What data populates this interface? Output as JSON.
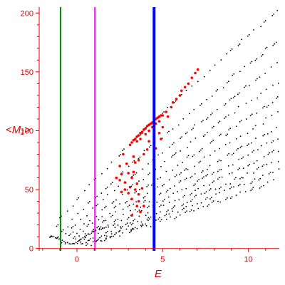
{
  "chart_data": {
    "type": "scatter",
    "title": "",
    "xlabel": "E",
    "ylabel": "<M₁>",
    "xlim": [
      -2.2,
      11.8
    ],
    "ylim": [
      -2,
      205
    ],
    "xticks": [
      0,
      5,
      10
    ],
    "yticks": [
      0,
      50,
      100,
      150,
      200
    ],
    "grid": false,
    "legend": "none",
    "axis_color": "#e00000",
    "vertical_lines": [
      {
        "x": -0.95,
        "color": "#008000"
      },
      {
        "x": 1.05,
        "color": "#ff00ff"
      },
      {
        "x": 4.5,
        "color": "#0000ff"
      }
    ],
    "series": [
      {
        "color": "#000000",
        "marker": "dot",
        "bands": [
          {
            "x0": -1.6,
            "y0": 10,
            "x1": 12.0,
            "y1": 205,
            "curve": 0.85
          },
          {
            "x0": -1.2,
            "y0": 8,
            "x1": 12.0,
            "y1": 180,
            "curve": 0.9
          },
          {
            "x0": -1.0,
            "y0": 7,
            "x1": 12.0,
            "y1": 160,
            "curve": 0.92
          },
          {
            "x0": -0.8,
            "y0": 6,
            "x1": 12.0,
            "y1": 145,
            "curve": 0.95
          },
          {
            "x0": -0.6,
            "y0": 5,
            "x1": 12.0,
            "y1": 130,
            "curve": 0.97
          },
          {
            "x0": -0.4,
            "y0": 5,
            "x1": 12.0,
            "y1": 118,
            "curve": 1.0
          },
          {
            "x0": -0.2,
            "y0": 4,
            "x1": 12.0,
            "y1": 105,
            "curve": 1.0
          },
          {
            "x0": 0.0,
            "y0": 4,
            "x1": 12.0,
            "y1": 95,
            "curve": 1.02
          },
          {
            "x0": 0.2,
            "y0": 4,
            "x1": 12.0,
            "y1": 85,
            "curve": 1.05
          },
          {
            "x0": 0.4,
            "y0": 4,
            "x1": 12.0,
            "y1": 76,
            "curve": 1.05
          },
          {
            "x0": 0.6,
            "y0": 4,
            "x1": 12.0,
            "y1": 68,
            "curve": 1.08
          },
          {
            "x0": 0.8,
            "y0": 4,
            "x1": 12.0,
            "y1": 60,
            "curve": 1.1
          }
        ],
        "extra_points": [
          [
            -1.55,
            10
          ],
          [
            -1.45,
            10
          ],
          [
            -1.35,
            10
          ],
          [
            -1.25,
            9
          ],
          [
            -1.15,
            9
          ],
          [
            -1.05,
            8
          ],
          [
            -0.95,
            7
          ],
          [
            -0.85,
            7
          ],
          [
            -0.75,
            6
          ],
          [
            -0.65,
            5
          ],
          [
            -0.55,
            5
          ],
          [
            -0.45,
            4
          ],
          [
            -0.35,
            4
          ],
          [
            -0.25,
            4
          ],
          [
            -0.15,
            4
          ],
          [
            -0.05,
            5
          ],
          [
            0.05,
            6
          ],
          [
            0.15,
            7
          ],
          [
            0.25,
            8
          ],
          [
            0.35,
            9
          ],
          [
            0.45,
            10
          ],
          [
            0.55,
            11
          ],
          [
            0.65,
            12
          ],
          [
            0.75,
            12
          ],
          [
            0.85,
            13
          ],
          [
            0.95,
            14
          ],
          [
            1.1,
            15
          ],
          [
            1.3,
            16
          ],
          [
            1.5,
            17
          ],
          [
            1.7,
            18
          ]
        ]
      },
      {
        "color": "#ff0000",
        "marker": "dot",
        "points": [
          [
            3.1,
            88
          ],
          [
            3.2,
            90
          ],
          [
            3.3,
            92
          ],
          [
            3.4,
            93
          ],
          [
            3.5,
            95
          ],
          [
            3.6,
            96
          ],
          [
            3.7,
            98
          ],
          [
            3.8,
            99
          ],
          [
            3.9,
            101
          ],
          [
            4.0,
            102
          ],
          [
            4.1,
            104
          ],
          [
            4.2,
            105
          ],
          [
            4.3,
            106
          ],
          [
            4.4,
            107
          ],
          [
            4.5,
            109
          ],
          [
            4.6,
            110
          ],
          [
            4.7,
            111
          ],
          [
            4.8,
            112
          ],
          [
            4.9,
            113
          ],
          [
            5.0,
            113
          ],
          [
            5.2,
            116
          ],
          [
            5.3,
            112
          ],
          [
            5.5,
            120
          ],
          [
            5.6,
            124
          ],
          [
            5.8,
            127
          ],
          [
            6.0,
            130
          ],
          [
            6.1,
            134
          ],
          [
            6.3,
            137
          ],
          [
            6.5,
            140
          ],
          [
            6.7,
            145
          ],
          [
            6.9,
            149
          ],
          [
            7.05,
            152
          ],
          [
            3.5,
            91
          ],
          [
            3.7,
            93
          ],
          [
            4.0,
            97
          ],
          [
            4.2,
            100
          ],
          [
            4.4,
            103
          ],
          [
            4.6,
            106
          ],
          [
            4.8,
            108
          ],
          [
            5.0,
            103
          ],
          [
            4.8,
            98
          ],
          [
            4.9,
            93
          ],
          [
            4.6,
            85
          ],
          [
            4.1,
            84
          ],
          [
            3.9,
            80
          ],
          [
            3.6,
            75
          ],
          [
            3.4,
            73
          ],
          [
            2.9,
            72
          ],
          [
            2.6,
            63
          ],
          [
            2.5,
            70
          ],
          [
            2.3,
            60
          ],
          [
            2.5,
            58
          ],
          [
            2.8,
            56
          ],
          [
            3.1,
            52
          ],
          [
            3.2,
            60
          ],
          [
            3.3,
            65
          ],
          [
            3.0,
            47
          ],
          [
            3.2,
            42
          ],
          [
            3.4,
            50
          ],
          [
            3.5,
            55
          ],
          [
            3.6,
            46
          ],
          [
            3.8,
            51
          ],
          [
            2.8,
            50
          ],
          [
            2.6,
            48
          ],
          [
            3.5,
            36
          ],
          [
            3.6,
            40
          ],
          [
            3.7,
            31
          ],
          [
            3.9,
            36
          ],
          [
            3.2,
            28
          ],
          [
            2.7,
            80
          ],
          [
            3.0,
            64
          ],
          [
            3.3,
            78
          ],
          [
            4.2,
            91
          ]
        ]
      }
    ]
  }
}
